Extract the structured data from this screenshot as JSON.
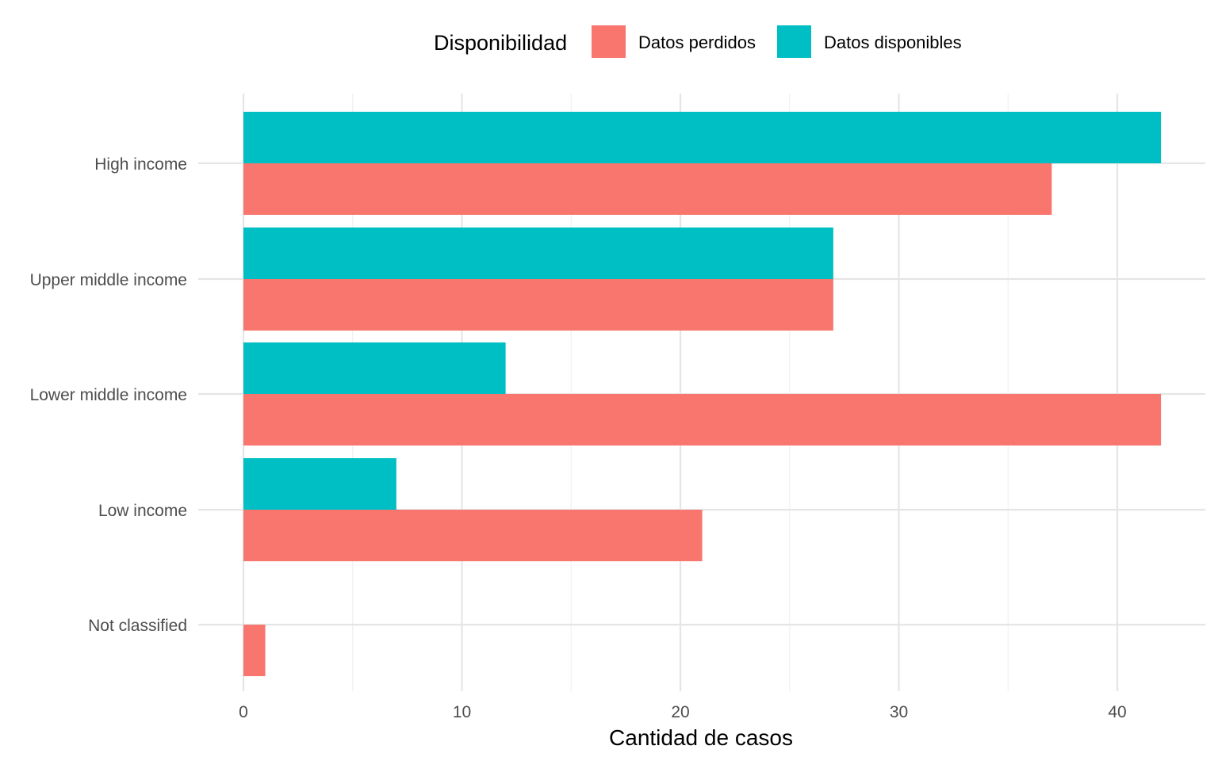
{
  "chart_data": {
    "type": "bar",
    "orientation": "horizontal",
    "categories": [
      "High income",
      "Upper middle income",
      "Lower middle income",
      "Low income",
      "Not classified"
    ],
    "series": [
      {
        "name": "Datos perdidos",
        "color": "#F8766D",
        "values": [
          37,
          27,
          42,
          21,
          1
        ]
      },
      {
        "name": "Datos disponibles",
        "color": "#00BFC4",
        "values": [
          42,
          27,
          12,
          7,
          0
        ]
      }
    ],
    "xlabel": "Cantidad de casos",
    "ylabel": "",
    "xlim": [
      0,
      44
    ],
    "x_ticks": [
      0,
      10,
      20,
      30,
      40
    ],
    "grid": true,
    "legend": {
      "title": "Disponibilidad",
      "position": "top"
    }
  }
}
